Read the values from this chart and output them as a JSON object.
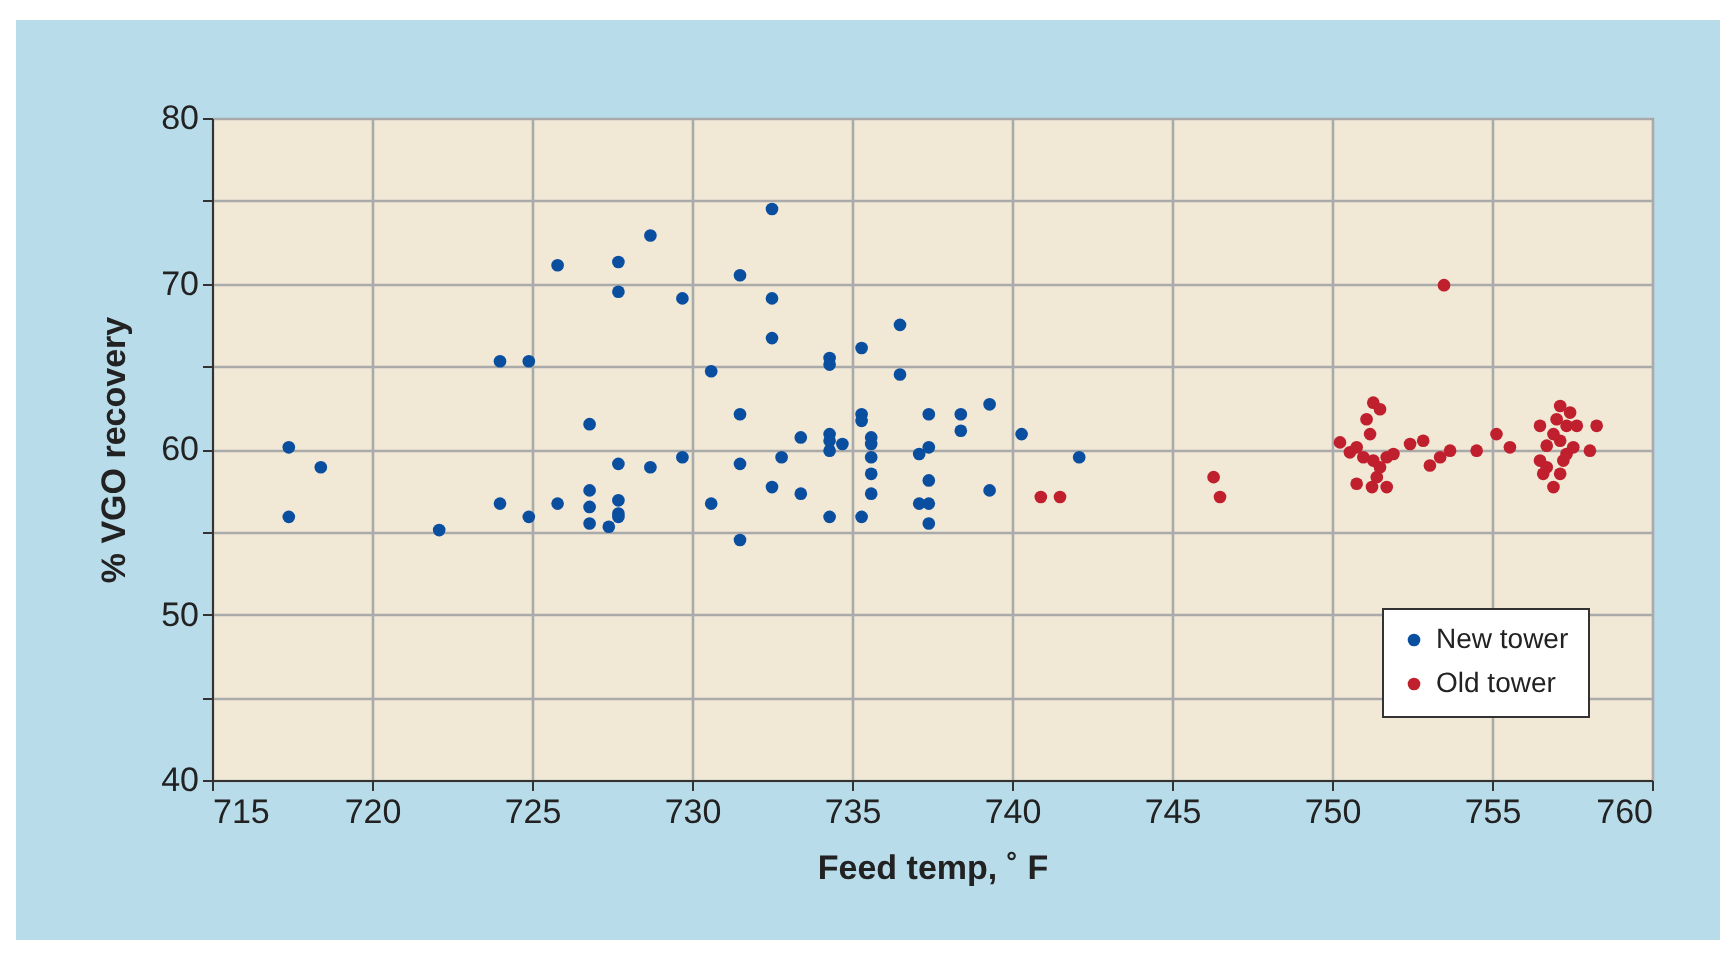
{
  "chart_data": {
    "type": "scatter",
    "xlabel": "Feed temp, ˚ F",
    "ylabel": "% VGO recovery",
    "xlim": [
      715,
      760
    ],
    "ylim": [
      40,
      80
    ],
    "xticks": [
      715,
      720,
      725,
      730,
      735,
      740,
      745,
      750,
      755,
      760
    ],
    "yticks": [
      40,
      {
        "value": 45,
        "label": null
      },
      50,
      {
        "value": 55,
        "label": null
      },
      60,
      {
        "value": 65,
        "label": null
      },
      70,
      {
        "value": 75,
        "label": null
      },
      80
    ],
    "grid": true,
    "legend": "bottom right",
    "marker": "circle",
    "series": [
      {
        "name": "New tower",
        "color": "#0a4ea0",
        "x": [
          717.4,
          717.4,
          718.4,
          722.1,
          724.0,
          724.0,
          724.9,
          724.9,
          725.8,
          725.8,
          726.8,
          726.8,
          726.8,
          726.8,
          727.4,
          727.7,
          727.7,
          727.7,
          727.7,
          727.7,
          727.7,
          728.7,
          728.7,
          729.7,
          729.7,
          730.6,
          730.6,
          731.5,
          731.5,
          731.5,
          731.5,
          732.5,
          732.5,
          732.5,
          732.5,
          732.8,
          733.4,
          733.4,
          734.3,
          734.3,
          734.3,
          734.3,
          734.3,
          734.7,
          734.3,
          735.3,
          735.3,
          735.3,
          735.3,
          735.6,
          735.6,
          735.6,
          735.6,
          735.6,
          736.5,
          736.5,
          737.1,
          737.1,
          737.4,
          737.4,
          737.4,
          737.4,
          737.4,
          738.4,
          738.4,
          739.3,
          739.3,
          740.3,
          742.1
        ],
        "values": [
          60.1,
          55.9,
          58.9,
          55.1,
          65.3,
          56.7,
          65.3,
          55.9,
          71.1,
          56.7,
          61.5,
          57.5,
          56.5,
          55.5,
          55.3,
          71.3,
          69.5,
          59.1,
          56.9,
          56.1,
          55.9,
          72.9,
          58.9,
          69.1,
          59.5,
          64.7,
          56.7,
          70.5,
          62.1,
          59.1,
          54.5,
          74.5,
          69.1,
          66.7,
          57.7,
          59.5,
          60.7,
          57.3,
          65.5,
          65.1,
          60.9,
          60.5,
          59.9,
          60.3,
          55.9,
          66.1,
          62.1,
          61.7,
          55.9,
          60.7,
          60.3,
          59.5,
          58.5,
          57.3,
          67.5,
          64.5,
          59.7,
          56.7,
          62.1,
          60.1,
          58.1,
          56.7,
          55.5,
          62.1,
          61.1,
          62.7,
          57.5,
          60.9,
          59.5
        ]
      },
      {
        "name": "Old tower",
        "color": "#c01f2e",
        "x": [
          740.9,
          741.5,
          746.3,
          746.5,
          753.5,
          750.25,
          750.56,
          750.77,
          750.98,
          751.29,
          751.5,
          751.71,
          751.92,
          751.08,
          751.29,
          751.5,
          751.19,
          750.77,
          751.25,
          751.71,
          751.4,
          752.44,
          752.85,
          753.06,
          753.38,
          753.69,
          754.52,
          755.14,
          755.56,
          756.5,
          756.71,
          756.5,
          756.6,
          756.92,
          757.13,
          757.23,
          757.13,
          757.33,
          757.13,
          757.44,
          757.65,
          757.54,
          756.92,
          757.02,
          758.27,
          758.06,
          756.71,
          757.33
        ],
        "values": [
          57.1,
          57.1,
          58.3,
          57.1,
          69.9,
          60.4,
          59.8,
          60.1,
          59.5,
          59.3,
          58.9,
          59.5,
          59.7,
          61.8,
          62.8,
          62.4,
          60.9,
          57.9,
          57.7,
          57.7,
          58.3,
          60.3,
          60.5,
          59.0,
          59.5,
          59.9,
          59.9,
          60.9,
          60.1,
          61.4,
          60.2,
          59.3,
          58.5,
          57.7,
          58.5,
          59.3,
          60.5,
          61.4,
          62.6,
          62.2,
          61.4,
          60.1,
          60.9,
          61.8,
          61.4,
          59.9,
          58.9,
          59.7
        ]
      }
    ]
  }
}
